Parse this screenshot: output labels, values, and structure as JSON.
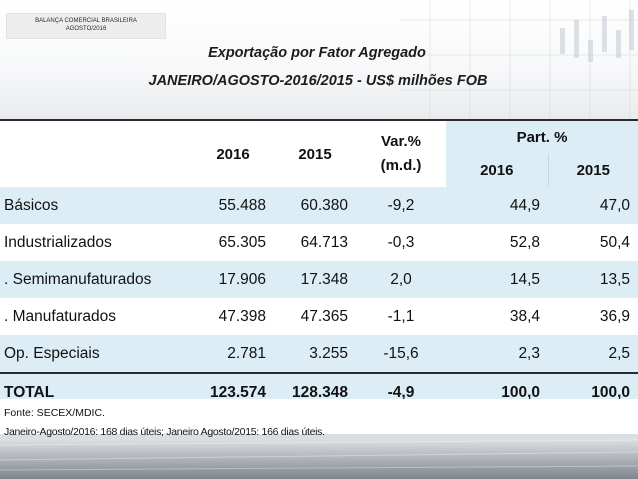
{
  "corner": {
    "line1": "BALANÇA COMERCIAL BRASILEIRA",
    "line2": "AGOSTO/2016"
  },
  "title": {
    "line1": "Exportação por Fator Agregado",
    "line2": "JANEIRO/AGOSTO-2016/2015 - US$ milhões FOB"
  },
  "table": {
    "headers": {
      "col2016": "2016",
      "col2015": "2015",
      "var_line1": "Var.%",
      "var_line2": "(m.d.)",
      "part": "Part. %",
      "part2016": "2016",
      "part2015": "2015"
    },
    "rows": [
      {
        "label": "Básicos",
        "v2016": "55.488",
        "v2015": "60.380",
        "var": "-9,2",
        "p2016": "44,9",
        "p2015": "47,0"
      },
      {
        "label": "Industrializados",
        "v2016": "65.305",
        "v2015": "64.713",
        "var": "-0,3",
        "p2016": "52,8",
        "p2015": "50,4"
      },
      {
        "label": ". Semimanufaturados",
        "v2016": "17.906",
        "v2015": "17.348",
        "var": "2,0",
        "p2016": "14,5",
        "p2015": "13,5"
      },
      {
        "label": ". Manufaturados",
        "v2016": "47.398",
        "v2015": "47.365",
        "var": "-1,1",
        "p2016": "38,4",
        "p2015": "36,9"
      },
      {
        "label": "Op. Especiais",
        "v2016": "2.781",
        "v2015": "3.255",
        "var": "-15,6",
        "p2016": "2,3",
        "p2015": "2,5"
      }
    ],
    "total": {
      "label": "TOTAL",
      "v2016": "123.574",
      "v2015": "128.348",
      "var": "-4,9",
      "p2016": "100,0",
      "p2015": "100,0"
    }
  },
  "footer": {
    "source": "Fonte: SECEX/MDIC.",
    "note": "Janeiro-Agosto/2016: 168 dias úteis; Janeiro Agosto/2015: 166 dias úteis."
  },
  "colors": {
    "row_blue": "#dcedf5",
    "border": "#2a2a2a"
  }
}
